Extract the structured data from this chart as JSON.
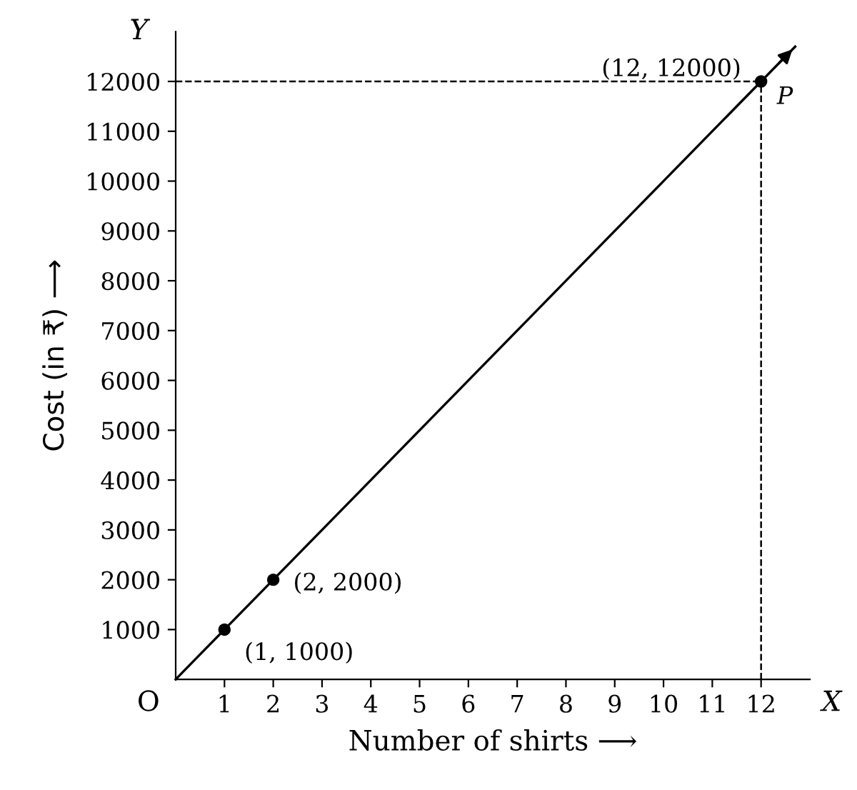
{
  "chart_data": {
    "type": "line",
    "xlabel": "Number of shirts ⟶",
    "ylabel": "Cost (in ₹) ⟶",
    "xlim": [
      0,
      13
    ],
    "ylim": [
      0,
      13000
    ],
    "xticks": [
      1,
      2,
      3,
      4,
      5,
      6,
      7,
      8,
      9,
      10,
      11,
      12
    ],
    "yticks": [
      1000,
      2000,
      3000,
      4000,
      5000,
      6000,
      7000,
      8000,
      9000,
      10000,
      11000,
      12000
    ],
    "grid": false,
    "legend": false,
    "series": [
      {
        "color": "#000000",
        "x": [
          0,
          12.7
        ],
        "values": [
          0,
          12700
        ],
        "marker": "none",
        "line_style": "solid"
      },
      {
        "type": "scatter",
        "color": "#000000",
        "x": [
          1,
          2,
          12
        ],
        "values": [
          1000,
          2000,
          12000
        ],
        "marker": "circle"
      }
    ],
    "ref_lines": [
      {
        "axis": "x",
        "value": 12,
        "color": "#000000",
        "line_style": "dashed"
      },
      {
        "axis": "y",
        "value": 12000,
        "color": "#000000",
        "line_style": "dashed"
      }
    ],
    "annotations": [
      {
        "text": "(1, 1000)",
        "x": 1,
        "y": 1000
      },
      {
        "text": "(2, 2000)",
        "x": 2,
        "y": 2000
      },
      {
        "text": "(12, 12000)",
        "x": 12,
        "y": 12000
      },
      {
        "text": "P",
        "x": 12,
        "y": 12000
      },
      "X",
      "Y",
      "O"
    ]
  }
}
